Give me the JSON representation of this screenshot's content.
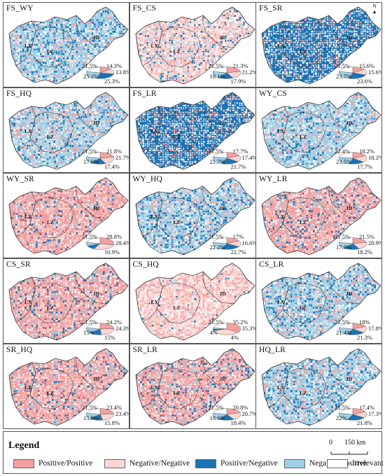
{
  "colors": {
    "positive_positive": "#f5a0a0",
    "negative_negative": "#fbd6d3",
    "positive_negative": "#1c73b4",
    "negative_positive": "#9fd0e8",
    "irrelevant": "#ffffff"
  },
  "regions": [
    "LX",
    "LZ",
    "JD"
  ],
  "north_label": "N",
  "panels": [
    {
      "title": "FS_WY",
      "pie": {
        "pp": "14.3%",
        "nn": "13.8%",
        "pn": "25.3%",
        "np": "25.1%",
        "irr": "21.5%"
      },
      "v": [
        14.3,
        13.8,
        25.3,
        25.1,
        21.5
      ],
      "dom": "np"
    },
    {
      "title": "FS_CS",
      "pie": {
        "pp": "21.3%",
        "nn": "21.2%",
        "pn": "17.9%",
        "np": "18.1%",
        "irr": "21.5%"
      },
      "v": [
        21.3,
        21.2,
        17.9,
        18.1,
        21.5
      ],
      "dom": "nn"
    },
    {
      "title": "FS_SR",
      "pie": {
        "pp": "15.6%",
        "nn": "15.6%",
        "pn": "23.6%",
        "np": "23.7%",
        "irr": "21.5%"
      },
      "v": [
        15.6,
        15.6,
        23.6,
        23.7,
        21.5
      ],
      "dom": "pn"
    },
    {
      "title": "FS_HQ",
      "pie": {
        "pp": "21.8%",
        "nn": "21.7%",
        "pn": "17.4%",
        "np": "17.6%",
        "irr": "21.5%"
      },
      "v": [
        21.8,
        21.7,
        17.4,
        17.6,
        21.5
      ],
      "dom": "np"
    },
    {
      "title": "FS_LR",
      "pie": {
        "pp": "17.7%",
        "nn": "17.4%",
        "pn": "21.7%",
        "np": "21.7%",
        "irr": "21.5%"
      },
      "v": [
        17.7,
        17.4,
        21.7,
        21.7,
        21.5
      ],
      "dom": "pn"
    },
    {
      "title": "WY_CS",
      "pie": {
        "pp": "18.2%",
        "nn": "18.2%",
        "pn": "17.7%",
        "np": "23.5%",
        "irr": "22.4%"
      },
      "v": [
        18.2,
        18.2,
        17.7,
        23.5,
        22.4
      ],
      "dom": "np"
    },
    {
      "title": "WY_SR",
      "pie": {
        "pp": "28.8%",
        "nn": "28.4%",
        "pn": "10.9%",
        "np": "",
        "irr": "21.5%"
      },
      "v": [
        28.8,
        28.4,
        10.9,
        10.4,
        21.5
      ],
      "dom": "pp"
    },
    {
      "title": "WY_HQ",
      "pie": {
        "pp": "17%",
        "nn": "16.6%",
        "pn": "22.7%",
        "np": "22.2%",
        "irr": "21.5%"
      },
      "v": [
        17,
        16.6,
        22.7,
        22.2,
        21.5
      ],
      "dom": "np"
    },
    {
      "title": "WY_LR",
      "pie": {
        "pp": "21.5%",
        "nn": "20.9%",
        "pn": "18.2%",
        "np": "17.9%",
        "irr": "21.5%"
      },
      "v": [
        21.5,
        20.9,
        18.2,
        17.9,
        21.5
      ],
      "dom": "pp"
    },
    {
      "title": "CS_SR",
      "pie": {
        "pp": "24.2%",
        "nn": "24.3%",
        "pn": "15%",
        "np": "15%",
        "irr": "21.5%"
      },
      "v": [
        24.2,
        24.3,
        15,
        15,
        21.5
      ],
      "dom": "pp"
    },
    {
      "title": "CS_HQ",
      "pie": {
        "pp": "35.2%",
        "nn": "35.3%",
        "pn": "4%",
        "np": "4%",
        "irr": "21.5%"
      },
      "v": [
        35.2,
        35.3,
        4,
        4,
        21.5
      ],
      "dom": "nn"
    },
    {
      "title": "CS_LR",
      "pie": {
        "pp": "18%",
        "nn": "17.8%",
        "pn": "21.3%",
        "np": "21.4%",
        "irr": "21.5%"
      },
      "v": [
        18,
        17.8,
        21.3,
        21.4,
        21.5
      ],
      "dom": "np"
    },
    {
      "title": "SR_HQ",
      "pie": {
        "pp": "23.4%",
        "nn": "23.4%",
        "pn": "15.8%",
        "np": "15.9%",
        "irr": "21.5%"
      },
      "v": [
        23.4,
        23.4,
        15.8,
        15.9,
        21.5
      ],
      "dom": "pp"
    },
    {
      "title": "SR_LR",
      "pie": {
        "pp": "20.8%",
        "nn": "20.7%",
        "pn": "18.4%",
        "np": "18.6%",
        "irr": "21.5%"
      },
      "v": [
        20.8,
        20.7,
        18.4,
        18.6,
        21.5
      ],
      "dom": "pp"
    },
    {
      "title": "HQ_LR",
      "pie": {
        "pp": "17.4%",
        "nn": "17.3%",
        "pn": "21.8%",
        "np": "22%",
        "irr": "21.5%"
      },
      "v": [
        17.4,
        17.3,
        21.8,
        22,
        21.5
      ],
      "dom": "np"
    }
  ],
  "legend": {
    "title": "Legend",
    "items": [
      {
        "label": "Positive/Positive",
        "key": "positive_positive"
      },
      {
        "label": "Negative/Negative",
        "key": "negative_negative"
      },
      {
        "label": "Positive/Negative",
        "key": "positive_negative"
      },
      {
        "label": "Negative/Positive",
        "key": "negative_positive"
      },
      {
        "label": "Irrelevant",
        "key": "irrelevant"
      }
    ],
    "scale_zero": "0",
    "scale_label": "150 km"
  }
}
